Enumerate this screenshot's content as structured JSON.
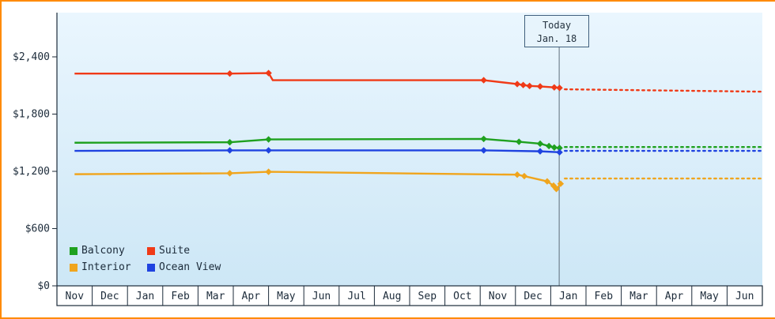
{
  "page": {
    "border_color": "#ff8a00"
  },
  "chart_data": {
    "type": "line",
    "title": "",
    "x_unit": "month-index: 0 = center of first Nov column, fractional values = position within month",
    "x_axis": {
      "categories": [
        "Nov",
        "Dec",
        "Jan",
        "Feb",
        "Mar",
        "Apr",
        "May",
        "Jun",
        "Jul",
        "Aug",
        "Sep",
        "Oct",
        "Nov",
        "Dec",
        "Jan",
        "Feb",
        "Mar",
        "Apr",
        "May",
        "Jun"
      ]
    },
    "y_axis": {
      "ticks": [
        {
          "value": 0,
          "label": "$0"
        },
        {
          "value": 600,
          "label": "$600"
        },
        {
          "value": 1200,
          "label": "$1,200"
        },
        {
          "value": 1800,
          "label": "$1,800"
        },
        {
          "value": 2400,
          "label": "$2,400"
        }
      ],
      "max": 2900
    },
    "today": {
      "label": "Today",
      "date": "Jan. 18",
      "x": 13.74
    },
    "plot_bg_top": "#eaf6fe",
    "plot_bg_bottom": "#cde7f6",
    "axis_color": "#1c2b3a",
    "today_line_color": "#5d6d7a",
    "legend_position": "bottom-left",
    "series": [
      {
        "name": "Balcony",
        "color": "#1fa11f",
        "solid": [
          [
            0,
            1500,
            0
          ],
          [
            4.4,
            1505,
            1
          ],
          [
            5.5,
            1535,
            1
          ],
          [
            11.6,
            1540,
            1
          ],
          [
            12.6,
            1510,
            1
          ],
          [
            13.2,
            1490,
            1
          ],
          [
            13.45,
            1465,
            1
          ],
          [
            13.6,
            1450,
            1
          ],
          [
            13.75,
            1445,
            1
          ]
        ],
        "dotted": [
          [
            13.9,
            1455
          ],
          [
            19.5,
            1455
          ]
        ]
      },
      {
        "name": "Suite",
        "color": "#f03a17",
        "solid": [
          [
            0,
            2225,
            0
          ],
          [
            4.4,
            2225,
            1
          ],
          [
            5.5,
            2230,
            1
          ],
          [
            5.62,
            2155,
            0
          ],
          [
            11.6,
            2155,
            1
          ],
          [
            12.55,
            2115,
            1
          ],
          [
            12.72,
            2105,
            1
          ],
          [
            12.9,
            2095,
            1
          ],
          [
            13.2,
            2090,
            1
          ],
          [
            13.6,
            2080,
            1
          ],
          [
            13.75,
            2075,
            1
          ]
        ],
        "dotted": [
          [
            13.9,
            2060
          ],
          [
            19.5,
            2035
          ]
        ]
      },
      {
        "name": "Interior",
        "color": "#f0a51d",
        "solid": [
          [
            0,
            1170,
            0
          ],
          [
            4.4,
            1180,
            1
          ],
          [
            5.5,
            1195,
            1
          ],
          [
            12.55,
            1165,
            1
          ],
          [
            12.75,
            1150,
            1
          ],
          [
            13.4,
            1095,
            1
          ],
          [
            13.58,
            1050,
            1
          ],
          [
            13.66,
            1015,
            1
          ],
          [
            13.78,
            1070,
            1
          ]
        ],
        "dotted": [
          [
            13.9,
            1125
          ],
          [
            19.5,
            1125
          ]
        ]
      },
      {
        "name": "Ocean View",
        "color": "#1f43e0",
        "solid": [
          [
            0,
            1415,
            0
          ],
          [
            4.4,
            1420,
            1
          ],
          [
            5.5,
            1420,
            1
          ],
          [
            11.6,
            1420,
            1
          ],
          [
            13.2,
            1410,
            1
          ],
          [
            13.75,
            1400,
            1
          ]
        ],
        "dotted": [
          [
            13.9,
            1415
          ],
          [
            19.5,
            1415
          ]
        ]
      }
    ]
  }
}
